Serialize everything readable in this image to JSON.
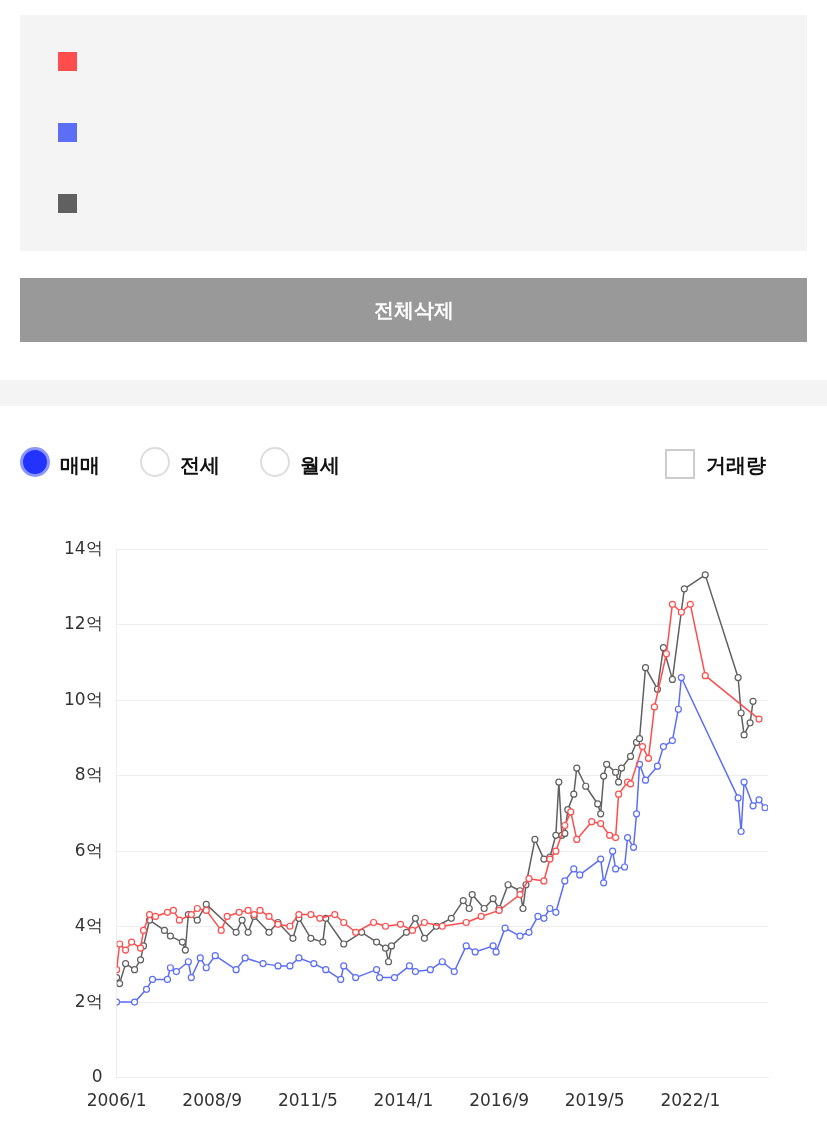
{
  "chart_data": {
    "type": "line",
    "marker": "circle",
    "line_style": "solid",
    "grid": "y",
    "annotations": [
      "전체삭제",
      "매매",
      "전세",
      "월세",
      "거래량"
    ],
    "xlim": [
      "2006-01",
      "2024-03"
    ],
    "xticks": [
      {
        "value": "2006-01",
        "label": "2006/1"
      },
      {
        "value": "2008-09",
        "label": "2008/9"
      },
      {
        "value": "2011-05",
        "label": "2011/5"
      },
      {
        "value": "2014-01",
        "label": "2014/1"
      },
      {
        "value": "2016-09",
        "label": "2016/9"
      },
      {
        "value": "2019-05",
        "label": "2019/5"
      },
      {
        "value": "2022-01",
        "label": "2022/1"
      }
    ],
    "ylim": [
      0,
      14
    ],
    "yticks": [
      0,
      {
        "value": 2,
        "label": "2억"
      },
      {
        "value": 4,
        "label": "4억"
      },
      {
        "value": 6,
        "label": "6억"
      },
      {
        "value": 8,
        "label": "8억"
      },
      {
        "value": 10,
        "label": "10억"
      },
      {
        "value": 12,
        "label": "12억"
      },
      {
        "value": 14,
        "label": "14억"
      }
    ],
    "series": [
      {
        "color": "#ff4d4d",
        "x": [
          "2006-01",
          "2006-02",
          "2006-04",
          "2006-06",
          "2006-09",
          "2006-10",
          "2006-12",
          "2007-02",
          "2007-06",
          "2007-08",
          "2007-10",
          "2008-02",
          "2008-04",
          "2008-07",
          "2008-12",
          "2009-02",
          "2009-06",
          "2009-09",
          "2009-11",
          "2010-01",
          "2010-04",
          "2010-07",
          "2010-11",
          "2011-02",
          "2011-06",
          "2011-09",
          "2012-02",
          "2012-05",
          "2012-09",
          "2013-03",
          "2013-07",
          "2013-12",
          "2014-04",
          "2014-08",
          "2015-02",
          "2015-10",
          "2016-03",
          "2016-09",
          "2017-04",
          "2017-07",
          "2017-12",
          "2018-02",
          "2018-04",
          "2018-07",
          "2018-09",
          "2018-11",
          "2019-04",
          "2019-07",
          "2019-10",
          "2019-12",
          "2020-01",
          "2020-04",
          "2020-05",
          "2020-09",
          "2020-11",
          "2021-01",
          "2021-05",
          "2021-07",
          "2021-10",
          "2022-01",
          "2022-06",
          "2023-12"
        ],
        "values": [
          2.86,
          3.54,
          3.38,
          3.59,
          3.43,
          3.9,
          4.32,
          4.27,
          4.38,
          4.43,
          4.17,
          4.32,
          4.48,
          4.43,
          3.9,
          4.27,
          4.38,
          4.43,
          4.32,
          4.43,
          4.27,
          4.06,
          4.01,
          4.32,
          4.32,
          4.22,
          4.32,
          4.11,
          3.85,
          4.11,
          4.01,
          4.06,
          3.9,
          4.11,
          4.01,
          4.11,
          4.27,
          4.43,
          4.85,
          5.27,
          5.21,
          5.79,
          6.0,
          6.68,
          7.04,
          6.31,
          6.78,
          6.73,
          6.42,
          6.36,
          7.51,
          7.83,
          7.78,
          8.77,
          8.46,
          9.82,
          11.23,
          12.54,
          12.33,
          12.54,
          10.65,
          9.5
        ]
      },
      {
        "color": "#5b6ef5",
        "x": [
          "2006-01",
          "2006-07",
          "2006-11",
          "2007-01",
          "2007-06",
          "2007-07",
          "2007-09",
          "2008-01",
          "2008-02",
          "2008-05",
          "2008-07",
          "2008-10",
          "2009-05",
          "2009-08",
          "2010-02",
          "2010-07",
          "2010-11",
          "2011-02",
          "2011-07",
          "2011-11",
          "2012-04",
          "2012-05",
          "2012-09",
          "2013-04",
          "2013-05",
          "2013-10",
          "2014-03",
          "2014-05",
          "2014-10",
          "2015-02",
          "2015-06",
          "2015-10",
          "2016-01",
          "2016-07",
          "2016-08",
          "2016-11",
          "2017-04",
          "2017-07",
          "2017-10",
          "2017-12",
          "2018-02",
          "2018-04",
          "2018-07",
          "2018-10",
          "2018-12",
          "2019-07",
          "2019-08",
          "2019-11",
          "2019-12",
          "2020-03",
          "2020-04",
          "2020-06",
          "2020-07",
          "2020-08",
          "2020-10",
          "2021-02",
          "2021-04",
          "2021-07",
          "2021-09",
          "2021-10",
          "2023-05",
          "2023-06",
          "2023-07",
          "2023-10",
          "2023-12",
          "2024-02"
        ],
        "values": [
          2.0,
          2.0,
          2.34,
          2.6,
          2.6,
          2.91,
          2.81,
          3.07,
          2.65,
          3.17,
          2.91,
          3.23,
          2.86,
          3.17,
          3.02,
          2.96,
          2.96,
          3.17,
          3.02,
          2.86,
          2.6,
          2.96,
          2.65,
          2.86,
          2.65,
          2.65,
          2.96,
          2.81,
          2.86,
          3.07,
          2.81,
          3.49,
          3.33,
          3.49,
          3.33,
          3.96,
          3.75,
          3.85,
          4.27,
          4.22,
          4.48,
          4.38,
          5.21,
          5.53,
          5.37,
          5.79,
          5.16,
          6.0,
          5.53,
          5.58,
          6.36,
          6.1,
          6.99,
          8.3,
          7.88,
          8.25,
          8.77,
          8.93,
          9.76,
          10.6,
          7.41,
          6.52,
          7.83,
          7.2,
          7.36,
          7.15
        ]
      },
      {
        "color": "#606060",
        "x": [
          "2006-01",
          "2006-02",
          "2006-04",
          "2006-07",
          "2006-09",
          "2006-10",
          "2006-12",
          "2007-05",
          "2007-07",
          "2007-11",
          "2007-12",
          "2008-01",
          "2008-04",
          "2008-07",
          "2009-05",
          "2009-07",
          "2009-09",
          "2009-11",
          "2010-04",
          "2010-07",
          "2010-12",
          "2011-02",
          "2011-06",
          "2011-10",
          "2011-11",
          "2012-05",
          "2012-11",
          "2013-04",
          "2013-07",
          "2013-08",
          "2013-09",
          "2014-02",
          "2014-05",
          "2014-08",
          "2014-12",
          "2015-05",
          "2015-09",
          "2015-11",
          "2015-12",
          "2016-04",
          "2016-07",
          "2016-09",
          "2016-12",
          "2017-04",
          "2017-05",
          "2017-06",
          "2017-09",
          "2017-12",
          "2018-02",
          "2018-04",
          "2018-05",
          "2018-06",
          "2018-07",
          "2018-08",
          "2018-10",
          "2018-11",
          "2019-02",
          "2019-06",
          "2019-07",
          "2019-08",
          "2019-09",
          "2019-12",
          "2020-01",
          "2020-02",
          "2020-05",
          "2020-07",
          "2020-08",
          "2020-10",
          "2021-02",
          "2021-04",
          "2021-07",
          "2021-11",
          "2022-06",
          "2023-05",
          "2023-06",
          "2023-07",
          "2023-09",
          "2023-10"
        ],
        "values": [
          2.65,
          2.49,
          3.02,
          2.86,
          3.12,
          3.49,
          4.17,
          3.9,
          3.75,
          3.59,
          3.38,
          4.32,
          4.17,
          4.59,
          3.85,
          4.17,
          3.85,
          4.27,
          3.85,
          4.11,
          3.69,
          4.22,
          3.69,
          3.59,
          4.22,
          3.54,
          3.85,
          3.59,
          3.43,
          3.07,
          3.49,
          3.85,
          4.22,
          3.69,
          4.01,
          4.22,
          4.69,
          4.48,
          4.85,
          4.48,
          4.74,
          4.48,
          5.11,
          4.95,
          4.48,
          5.11,
          6.31,
          5.79,
          5.84,
          6.42,
          7.83,
          6.42,
          6.47,
          7.1,
          7.51,
          8.2,
          7.72,
          7.25,
          6.99,
          7.99,
          8.3,
          8.09,
          7.83,
          8.2,
          8.51,
          8.88,
          8.98,
          10.86,
          10.29,
          11.39,
          10.55,
          12.95,
          13.32,
          10.6,
          9.66,
          9.08,
          9.4,
          9.97
        ]
      }
    ]
  }
}
